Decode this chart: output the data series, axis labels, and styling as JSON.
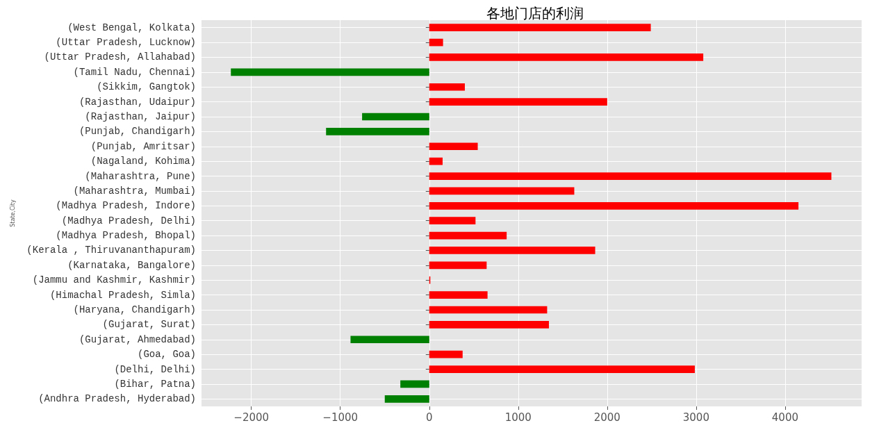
{
  "chart_data": {
    "type": "bar",
    "orientation": "horizontal",
    "title": "各地门店的利润",
    "ylabel": "State,City",
    "categories": [
      "(West Bengal, Kolkata)",
      "(Uttar Pradesh, Lucknow)",
      "(Uttar Pradesh, Allahabad)",
      "(Tamil Nadu, Chennai)",
      "(Sikkim, Gangtok)",
      "(Rajasthan, Udaipur)",
      "(Rajasthan, Jaipur)",
      "(Punjab, Chandigarh)",
      "(Punjab, Amritsar)",
      "(Nagaland, Kohima)",
      "(Maharashtra, Pune)",
      "(Maharashtra, Mumbai)",
      "(Madhya Pradesh, Indore)",
      "(Madhya Pradesh, Delhi)",
      "(Madhya Pradesh, Bhopal)",
      "(Kerala , Thiruvananthapuram)",
      "(Karnataka, Bangalore)",
      "(Jammu and Kashmir, Kashmir)",
      "(Himachal Pradesh, Simla)",
      "(Haryana, Chandigarh)",
      "(Gujarat, Surat)",
      "(Gujarat, Ahmedabad)",
      "(Goa, Goa)",
      "(Delhi, Delhi)",
      "(Bihar, Patna)",
      "(Andhra Pradesh, Hyderabad)"
    ],
    "values": [
      2490,
      155,
      3080,
      -2230,
      400,
      2000,
      -755,
      -1160,
      545,
      150,
      4520,
      1630,
      4150,
      520,
      870,
      1865,
      645,
      12,
      655,
      1325,
      1345,
      -885,
      375,
      2985,
      -325,
      -500
    ],
    "colors": [
      "#ff0000",
      "#ff0000",
      "#ff0000",
      "#008000",
      "#ff0000",
      "#ff0000",
      "#008000",
      "#008000",
      "#ff0000",
      "#ff0000",
      "#ff0000",
      "#ff0000",
      "#ff0000",
      "#ff0000",
      "#ff0000",
      "#ff0000",
      "#ff0000",
      "#ff0000",
      "#ff0000",
      "#ff0000",
      "#ff0000",
      "#008000",
      "#ff0000",
      "#ff0000",
      "#008000",
      "#008000"
    ],
    "xlim": [
      -2560,
      4860
    ],
    "xticks": [
      {
        "value": -2000,
        "label": "−2000"
      },
      {
        "value": -1000,
        "label": "−1000"
      },
      0,
      1000,
      2000,
      3000,
      4000
    ],
    "grid": true
  }
}
